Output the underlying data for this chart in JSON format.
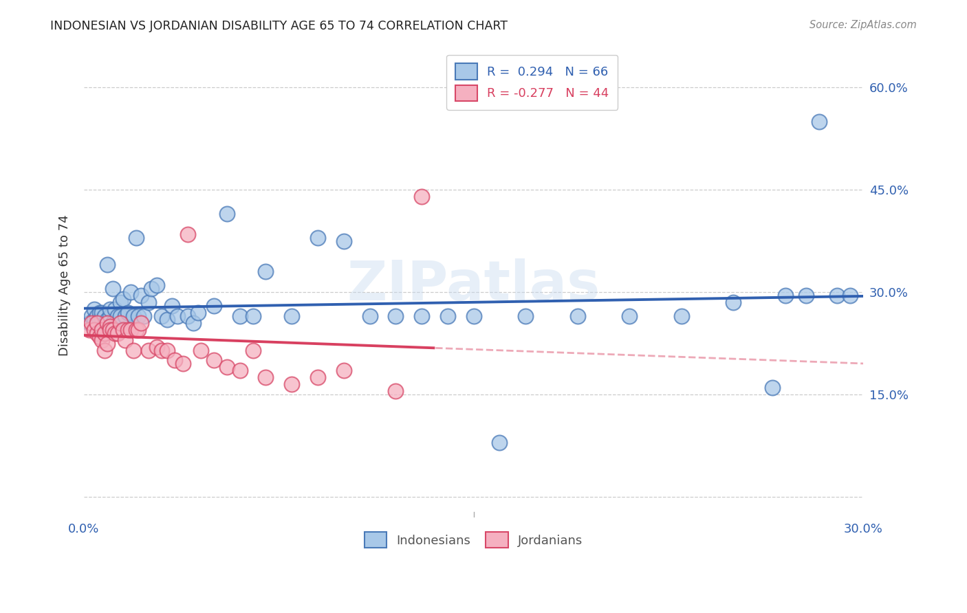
{
  "title": "INDONESIAN VS JORDANIAN DISABILITY AGE 65 TO 74 CORRELATION CHART",
  "source": "Source: ZipAtlas.com",
  "ylabel": "Disability Age 65 to 74",
  "xlim": [
    0.0,
    0.3
  ],
  "ylim": [
    -0.03,
    0.65
  ],
  "yticks": [
    0.0,
    0.15,
    0.3,
    0.45,
    0.6
  ],
  "ytick_labels": [
    "",
    "15.0%",
    "30.0%",
    "45.0%",
    "60.0%"
  ],
  "xticks": [
    0.0,
    0.05,
    0.1,
    0.15,
    0.2,
    0.25,
    0.3
  ],
  "xtick_labels": [
    "0.0%",
    "",
    "",
    "",
    "",
    "",
    "30.0%"
  ],
  "r_indonesian": 0.294,
  "n_indonesian": 66,
  "r_jordanian": -0.277,
  "n_jordanian": 44,
  "indonesian_fill_color": "#a8c8e8",
  "jordanian_fill_color": "#f5b0c0",
  "indonesian_edge_color": "#4a7ab8",
  "jordanian_edge_color": "#d84868",
  "indonesian_line_color": "#3060b0",
  "jordanian_line_color": "#d84060",
  "background_color": "#ffffff",
  "grid_color": "#cccccc",
  "watermark": "ZIPatlas",
  "indonesian_scatter_x": [
    0.002,
    0.003,
    0.004,
    0.004,
    0.005,
    0.005,
    0.006,
    0.006,
    0.007,
    0.007,
    0.008,
    0.008,
    0.009,
    0.009,
    0.01,
    0.01,
    0.011,
    0.011,
    0.012,
    0.013,
    0.014,
    0.014,
    0.015,
    0.016,
    0.017,
    0.018,
    0.019,
    0.02,
    0.021,
    0.022,
    0.023,
    0.025,
    0.026,
    0.028,
    0.03,
    0.032,
    0.034,
    0.036,
    0.04,
    0.042,
    0.044,
    0.05,
    0.055,
    0.06,
    0.065,
    0.07,
    0.08,
    0.09,
    0.1,
    0.11,
    0.12,
    0.13,
    0.14,
    0.15,
    0.16,
    0.17,
    0.19,
    0.21,
    0.23,
    0.25,
    0.265,
    0.27,
    0.278,
    0.283,
    0.29,
    0.295
  ],
  "indonesian_scatter_y": [
    0.255,
    0.265,
    0.26,
    0.275,
    0.255,
    0.265,
    0.26,
    0.27,
    0.26,
    0.27,
    0.255,
    0.265,
    0.26,
    0.34,
    0.265,
    0.275,
    0.255,
    0.305,
    0.275,
    0.265,
    0.285,
    0.265,
    0.29,
    0.265,
    0.27,
    0.3,
    0.265,
    0.38,
    0.265,
    0.295,
    0.265,
    0.285,
    0.305,
    0.31,
    0.265,
    0.26,
    0.28,
    0.265,
    0.265,
    0.255,
    0.27,
    0.28,
    0.415,
    0.265,
    0.265,
    0.33,
    0.265,
    0.38,
    0.375,
    0.265,
    0.265,
    0.265,
    0.265,
    0.265,
    0.08,
    0.265,
    0.265,
    0.265,
    0.265,
    0.285,
    0.16,
    0.295,
    0.295,
    0.55,
    0.295,
    0.295
  ],
  "jordanian_scatter_x": [
    0.002,
    0.003,
    0.004,
    0.005,
    0.005,
    0.006,
    0.007,
    0.007,
    0.008,
    0.008,
    0.009,
    0.009,
    0.01,
    0.01,
    0.011,
    0.012,
    0.013,
    0.014,
    0.015,
    0.016,
    0.017,
    0.018,
    0.019,
    0.02,
    0.021,
    0.022,
    0.025,
    0.028,
    0.03,
    0.032,
    0.035,
    0.038,
    0.04,
    0.045,
    0.05,
    0.055,
    0.06,
    0.065,
    0.07,
    0.08,
    0.09,
    0.1,
    0.12,
    0.13
  ],
  "jordanian_scatter_y": [
    0.245,
    0.255,
    0.245,
    0.24,
    0.255,
    0.235,
    0.23,
    0.245,
    0.215,
    0.24,
    0.225,
    0.255,
    0.25,
    0.245,
    0.245,
    0.24,
    0.24,
    0.255,
    0.245,
    0.23,
    0.245,
    0.245,
    0.215,
    0.245,
    0.245,
    0.255,
    0.215,
    0.22,
    0.215,
    0.215,
    0.2,
    0.195,
    0.385,
    0.215,
    0.2,
    0.19,
    0.185,
    0.215,
    0.175,
    0.165,
    0.175,
    0.185,
    0.155,
    0.44
  ],
  "jord_line_solid_end": 0.135
}
